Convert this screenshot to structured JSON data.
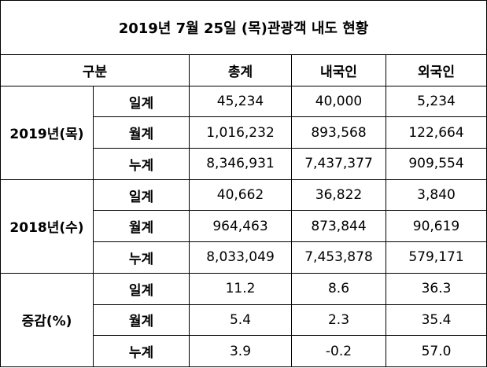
{
  "title": "2019년 7월 25일 (목)관광객 내도 현황",
  "table": {
    "header": [
      "구분",
      "총계",
      "내국인",
      "외국인"
    ],
    "groups": [
      {
        "label": "2019년(목)",
        "rows": [
          {
            "label": "일계",
            "cells": [
              "45,234",
              "40,000",
              "5,234"
            ]
          },
          {
            "label": "월계",
            "cells": [
              "1,016,232",
              "893,568",
              "122,664"
            ]
          },
          {
            "label": "누계",
            "cells": [
              "8,346,931",
              "7,437,377",
              "909,554"
            ]
          }
        ]
      },
      {
        "label": "2018년(수)",
        "rows": [
          {
            "label": "일계",
            "cells": [
              "40,662",
              "36,822",
              "3,840"
            ]
          },
          {
            "label": "월계",
            "cells": [
              "964,463",
              "873,844",
              "90,619"
            ]
          },
          {
            "label": "누계",
            "cells": [
              "8,033,049",
              "7,453,878",
              "579,171"
            ]
          }
        ]
      },
      {
        "label": "증감(%)",
        "rows": [
          {
            "label": "일계",
            "cells": [
              "11.2",
              "8.6",
              "36.3"
            ]
          },
          {
            "label": "월계",
            "cells": [
              "5.4",
              "2.3",
              "35.4"
            ]
          },
          {
            "label": "누계",
            "cells": [
              "3.9",
              "-0.2",
              "57.0"
            ]
          }
        ]
      }
    ]
  }
}
